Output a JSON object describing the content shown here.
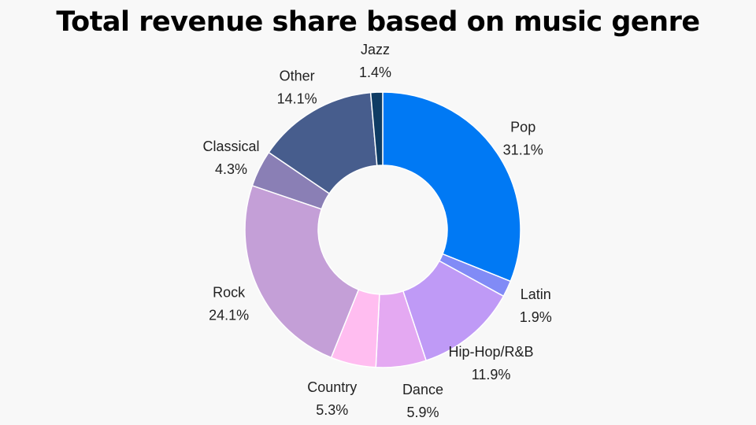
{
  "chart_data": {
    "type": "pie",
    "title": "Total revenue share based on music genre",
    "categories": [
      "Pop",
      "Latin",
      "Hip-Hop/R&B",
      "Dance",
      "Country",
      "Rock",
      "Classical",
      "Other",
      "Jazz"
    ],
    "values": [
      31.1,
      1.9,
      11.9,
      5.9,
      5.3,
      24.1,
      4.3,
      14.1,
      1.4
    ],
    "value_labels": [
      "31.1%",
      "1.9%",
      "11.9%",
      "5.9%",
      "5.3%",
      "24.1%",
      "4.3%",
      "14.1%",
      "1.4%"
    ],
    "colors": [
      "#0079f4",
      "#818bf6",
      "#bf9af6",
      "#e4a9f2",
      "#ffbdf0",
      "#c49fd7",
      "#8a7fb5",
      "#475d8d",
      "#0f3c64"
    ],
    "donut": true,
    "start_angle_deg": 0,
    "direction": "clockwise",
    "legend": "none"
  }
}
